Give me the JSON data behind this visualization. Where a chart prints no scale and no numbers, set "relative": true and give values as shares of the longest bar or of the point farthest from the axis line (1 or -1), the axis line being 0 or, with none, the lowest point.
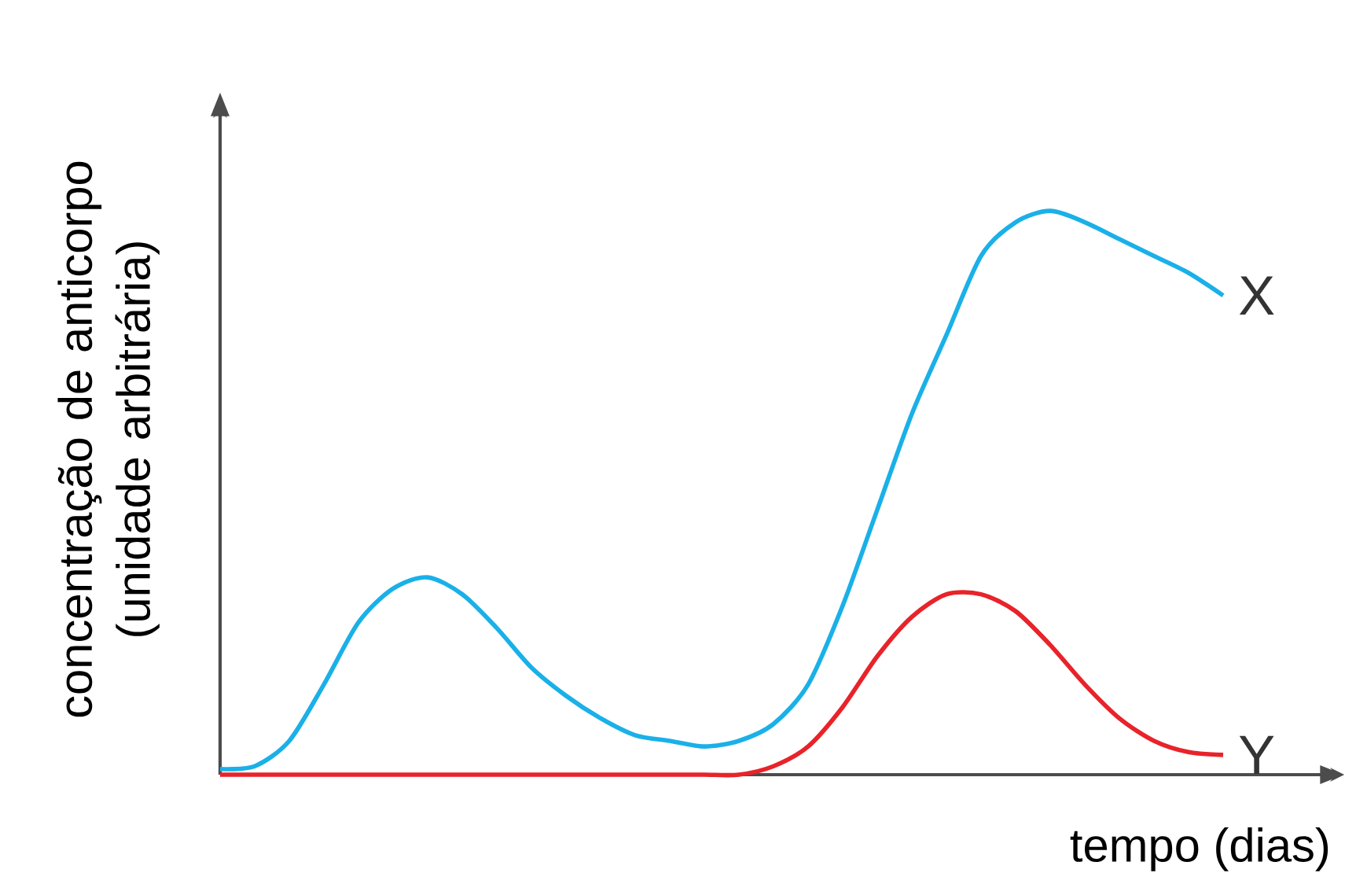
{
  "chart_data": {
    "type": "line",
    "relative": true,
    "xlabel": "tempo (dias)",
    "ylabel": "concentração de anticorpo (unidade arbitrária)",
    "categories": [
      null,
      null,
      null,
      null,
      null,
      null,
      null,
      null,
      null,
      null,
      null,
      null,
      null,
      null,
      null,
      null,
      null,
      null,
      null,
      null,
      null,
      null,
      null,
      null,
      null,
      null,
      null,
      null,
      null,
      null
    ],
    "series": [
      {
        "name": "X",
        "color": "#1ab0e8",
        "values": [
          0.01,
          0.015,
          0.06,
          0.16,
          0.27,
          0.33,
          0.35,
          0.32,
          0.26,
          0.19,
          0.14,
          0.1,
          0.07,
          0.06,
          0.05,
          0.06,
          0.09,
          0.16,
          0.3,
          0.47,
          0.64,
          0.78,
          0.92,
          0.98,
          1.0,
          0.98,
          0.95,
          0.92,
          0.89,
          0.85
        ]
      },
      {
        "name": "Y",
        "color": "#e8232a",
        "values": [
          0,
          0,
          0,
          0,
          0,
          0,
          0,
          0,
          0,
          0,
          0,
          0,
          0,
          0,
          0,
          0,
          0.015,
          0.05,
          0.12,
          0.21,
          0.28,
          0.32,
          0.32,
          0.29,
          0.23,
          0.16,
          0.1,
          0.06,
          0.04,
          0.035
        ]
      }
    ]
  }
}
